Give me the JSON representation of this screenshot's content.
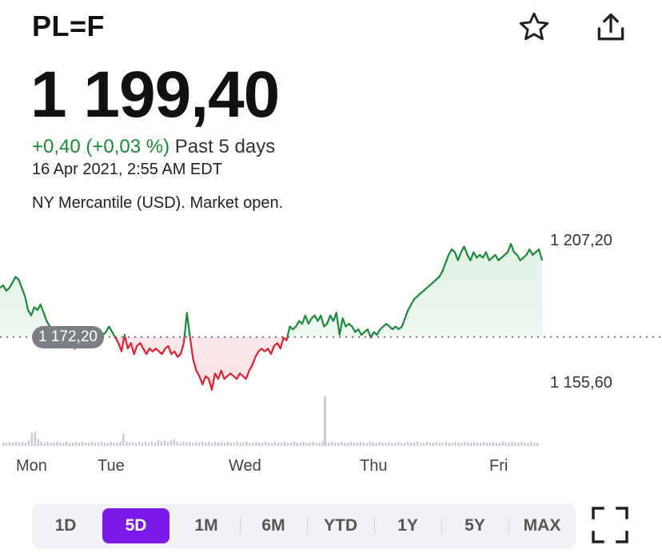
{
  "header": {
    "ticker": "PL=F",
    "star_icon": "star-icon",
    "share_icon": "share-icon"
  },
  "quote": {
    "price": "1 199,40",
    "change": "+0,40 (+0,03 %)",
    "period": "Past 5 days",
    "timestamp": "16 Apr 2021, 2:55 AM EDT",
    "market_status": "NY Mercantile (USD). Market open."
  },
  "chart_labels": {
    "previous_close": "1 172,20",
    "y_top": "1 207,20",
    "y_bottom": "1 155,60",
    "x_days": [
      "Mon",
      "Tue",
      "Wed",
      "Thu",
      "Fri"
    ]
  },
  "chart_data": {
    "type": "line",
    "x_labels": [
      "Mon",
      "Tue",
      "Wed",
      "Thu",
      "Fri"
    ],
    "y_ticks": [
      1207.2,
      1155.6
    ],
    "previous_close": 1172.2,
    "ylim": [
      1140,
      1217
    ],
    "colors": {
      "up": "#1a8a3a",
      "down": "#e02030",
      "up_fill": "#dff1e4",
      "down_fill": "#fbe1e4"
    },
    "price": [
      1190,
      1191,
      1189,
      1190,
      1192,
      1194,
      1193,
      1190,
      1187,
      1182,
      1180,
      1183,
      1182,
      1184,
      1181,
      1178,
      1176,
      1174,
      1173,
      1172,
      1173,
      1171,
      1172,
      1170,
      1168,
      1170,
      1172,
      1171,
      1172,
      1174,
      1172,
      1174,
      1175,
      1173,
      1174,
      1176,
      1174,
      1172,
      1170,
      1167,
      1173,
      1168,
      1170,
      1166,
      1169,
      1170,
      1168,
      1166,
      1168,
      1167,
      1168,
      1167,
      1166,
      1168,
      1169,
      1166,
      1167,
      1165,
      1166,
      1170,
      1181,
      1172,
      1164,
      1160,
      1158,
      1155,
      1158,
      1157,
      1153,
      1159,
      1157,
      1160,
      1157,
      1158,
      1159,
      1158,
      1157,
      1159,
      1158,
      1157,
      1160,
      1162,
      1165,
      1167,
      1168,
      1167,
      1168,
      1166,
      1169,
      1170,
      1168,
      1172,
      1171,
      1176,
      1175,
      1176,
      1178,
      1177,
      1180,
      1177,
      1179,
      1180,
      1178,
      1180,
      1176,
      1177,
      1180,
      1178,
      1181,
      1173,
      1179,
      1176,
      1177,
      1176,
      1174,
      1175,
      1173,
      1174,
      1175,
      1172,
      1174,
      1173,
      1175,
      1176,
      1177,
      1176,
      1175,
      1176,
      1175,
      1176,
      1179,
      1182,
      1184,
      1186,
      1187,
      1188,
      1189,
      1190,
      1191,
      1192,
      1193,
      1194,
      1196,
      1199,
      1202,
      1204,
      1203,
      1200,
      1203,
      1205,
      1202,
      1200,
      1203,
      1201,
      1202,
      1201,
      1203,
      1200,
      1201,
      1202,
      1200,
      1201,
      1202,
      1203,
      1206,
      1203,
      1202,
      1200,
      1201,
      1202,
      1204,
      1202,
      1203,
      1204,
      1200
    ],
    "volume": [
      3,
      3,
      4,
      3,
      4,
      3,
      4,
      3,
      5,
      12,
      13,
      6,
      4,
      3,
      4,
      3,
      3,
      4,
      3,
      3,
      4,
      3,
      3,
      4,
      3,
      4,
      3,
      3,
      4,
      3,
      3,
      4,
      3,
      3,
      4,
      3,
      3,
      4,
      11,
      4,
      3,
      4,
      3,
      4,
      3,
      4,
      3,
      4,
      3,
      5,
      4,
      5,
      4,
      5,
      6,
      4,
      3,
      4,
      3,
      4,
      3,
      4,
      3,
      4,
      3,
      4,
      3,
      4,
      3,
      4,
      3,
      4,
      3,
      3,
      4,
      3,
      3,
      4,
      3,
      3,
      4,
      3,
      3,
      4,
      3,
      3,
      4,
      3,
      3,
      4,
      3,
      3,
      4,
      3,
      3,
      4,
      3,
      3,
      4,
      3,
      3,
      4,
      3,
      3,
      4,
      3,
      3,
      4,
      3,
      3,
      4,
      3,
      3,
      4,
      3,
      3,
      4,
      3,
      3,
      4,
      3,
      3,
      4,
      3,
      3,
      4,
      3,
      3,
      4,
      3,
      3,
      4,
      3,
      3,
      4,
      3,
      3,
      4,
      3,
      3,
      4,
      3,
      3,
      4,
      3,
      3,
      4,
      3,
      3,
      4,
      3,
      3,
      4,
      3,
      3,
      4,
      3,
      3,
      4,
      3,
      3,
      4,
      3,
      3,
      4,
      3,
      3,
      4,
      3,
      3
    ]
  },
  "range_buttons": [
    "1D",
    "5D",
    "1M",
    "6M",
    "YTD",
    "1Y",
    "5Y",
    "MAX"
  ],
  "active_range": "5D",
  "fullscreen_icon": "fullscreen-icon"
}
